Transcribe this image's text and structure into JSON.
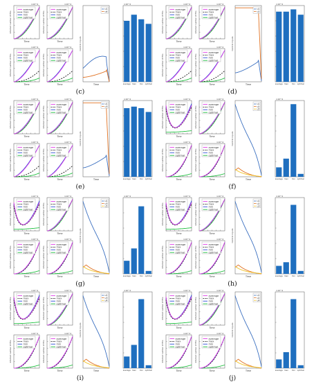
{
  "panel_labels": [
    "(c)",
    "(d)",
    "(e)",
    "(f)",
    "(g)",
    "(h)",
    "(i)",
    "(j)"
  ],
  "legend_methods": [
    "average",
    "max",
    "min",
    "optimal"
  ],
  "axis_text": {
    "time": "Time",
    "infected_number": "Infected number of PCs",
    "control_inputs": "Control inputs",
    "exponent": "×10^4"
  },
  "bar_categories": [
    "average",
    "max",
    "min",
    "optimal"
  ],
  "colors": {
    "average": "#e040e8",
    "max": "#222222",
    "min": "#3050d8",
    "optimal": "#20c040",
    "bar": "#1f6fbf",
    "u_blue": "#3a6fc0",
    "u_orange": "#e07020",
    "u_yellow": "#f0c020"
  },
  "chart_data": [
    {
      "panel": "(c)",
      "type": "composite",
      "control_legend": [
        "u1",
        "u4"
      ],
      "bar_values": [
        0.8,
        0.88,
        0.82,
        0.76
      ],
      "bar_ylim": [
        0,
        1.0
      ],
      "control_shape": "low"
    },
    {
      "panel": "(d)",
      "type": "composite",
      "control_legend": [
        "u1",
        "u2"
      ],
      "bar_values": [
        0.92,
        0.92,
        0.95,
        0.88
      ],
      "bar_ylim": [
        0,
        1.0
      ],
      "control_shape": "high"
    },
    {
      "panel": "(e)",
      "type": "composite",
      "control_legend": [
        "u1",
        "u3"
      ],
      "bar_values": [
        0.9,
        0.92,
        0.9,
        0.85
      ],
      "bar_ylim": [
        0,
        1.0
      ],
      "control_shape": "high"
    },
    {
      "panel": "(f)",
      "type": "composite",
      "control_legend": [
        "u1",
        "u2",
        "u5"
      ],
      "bar_values": [
        0.13,
        0.25,
        1.0,
        0.04
      ],
      "bar_ylim": [
        0,
        1.05
      ],
      "control_shape": "decay"
    },
    {
      "panel": "(g)",
      "type": "composite",
      "control_legend": [
        "u1",
        "u3",
        "u5"
      ],
      "bar_values": [
        0.18,
        0.35,
        0.93,
        0.04
      ],
      "bar_ylim": [
        0,
        1.05
      ],
      "control_shape": "decay"
    },
    {
      "panel": "(h)",
      "type": "composite",
      "control_legend": [
        "u1",
        "u2",
        "u3"
      ],
      "bar_values": [
        0.11,
        0.16,
        0.95,
        0.04
      ],
      "bar_ylim": [
        0,
        1.05
      ],
      "control_shape": "decay"
    },
    {
      "panel": "(i)",
      "type": "composite",
      "control_legend": [
        "u1",
        "u3",
        "u4"
      ],
      "bar_values": [
        0.16,
        0.32,
        0.95,
        0.04
      ],
      "bar_ylim": [
        0,
        1.05
      ],
      "control_shape": "decay"
    },
    {
      "panel": "(j)",
      "type": "composite",
      "control_legend": [
        "u1",
        "u2",
        "u4"
      ],
      "bar_values": [
        0.12,
        0.22,
        0.95,
        0.04
      ],
      "bar_ylim": [
        0,
        1.05
      ],
      "control_shape": "decay"
    }
  ]
}
